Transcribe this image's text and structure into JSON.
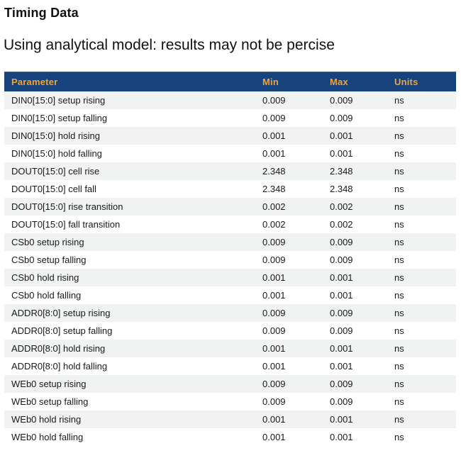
{
  "page": {
    "title": "Timing Data",
    "subtitle": "Using analytical model: results may not be percise"
  },
  "colors": {
    "header_bg": "#17427b",
    "header_text": "#efa439",
    "row_alt_bg": "#f1f2f2",
    "row_bg": "#ffffff",
    "body_text": "#1a1a1a"
  },
  "table": {
    "columns": [
      "Parameter",
      "Min",
      "Max",
      "Units"
    ],
    "rows": [
      {
        "parameter": "DIN0[15:0] setup rising",
        "min": "0.009",
        "max": "0.009",
        "units": "ns"
      },
      {
        "parameter": "DIN0[15:0] setup falling",
        "min": "0.009",
        "max": "0.009",
        "units": "ns"
      },
      {
        "parameter": "DIN0[15:0] hold rising",
        "min": "0.001",
        "max": "0.001",
        "units": "ns"
      },
      {
        "parameter": "DIN0[15:0] hold falling",
        "min": "0.001",
        "max": "0.001",
        "units": "ns"
      },
      {
        "parameter": "DOUT0[15:0] cell rise",
        "min": "2.348",
        "max": "2.348",
        "units": "ns"
      },
      {
        "parameter": "DOUT0[15:0] cell fall",
        "min": "2.348",
        "max": "2.348",
        "units": "ns"
      },
      {
        "parameter": "DOUT0[15:0] rise transition",
        "min": "0.002",
        "max": "0.002",
        "units": "ns"
      },
      {
        "parameter": "DOUT0[15:0] fall transition",
        "min": "0.002",
        "max": "0.002",
        "units": "ns"
      },
      {
        "parameter": "CSb0 setup rising",
        "min": "0.009",
        "max": "0.009",
        "units": "ns"
      },
      {
        "parameter": "CSb0 setup falling",
        "min": "0.009",
        "max": "0.009",
        "units": "ns"
      },
      {
        "parameter": "CSb0 hold rising",
        "min": "0.001",
        "max": "0.001",
        "units": "ns"
      },
      {
        "parameter": "CSb0 hold falling",
        "min": "0.001",
        "max": "0.001",
        "units": "ns"
      },
      {
        "parameter": "ADDR0[8:0] setup rising",
        "min": "0.009",
        "max": "0.009",
        "units": "ns"
      },
      {
        "parameter": "ADDR0[8:0] setup falling",
        "min": "0.009",
        "max": "0.009",
        "units": "ns"
      },
      {
        "parameter": "ADDR0[8:0] hold rising",
        "min": "0.001",
        "max": "0.001",
        "units": "ns"
      },
      {
        "parameter": "ADDR0[8:0] hold falling",
        "min": "0.001",
        "max": "0.001",
        "units": "ns"
      },
      {
        "parameter": "WEb0 setup rising",
        "min": "0.009",
        "max": "0.009",
        "units": "ns"
      },
      {
        "parameter": "WEb0 setup falling",
        "min": "0.009",
        "max": "0.009",
        "units": "ns"
      },
      {
        "parameter": "WEb0 hold rising",
        "min": "0.001",
        "max": "0.001",
        "units": "ns"
      },
      {
        "parameter": "WEb0 hold falling",
        "min": "0.001",
        "max": "0.001",
        "units": "ns"
      }
    ]
  }
}
